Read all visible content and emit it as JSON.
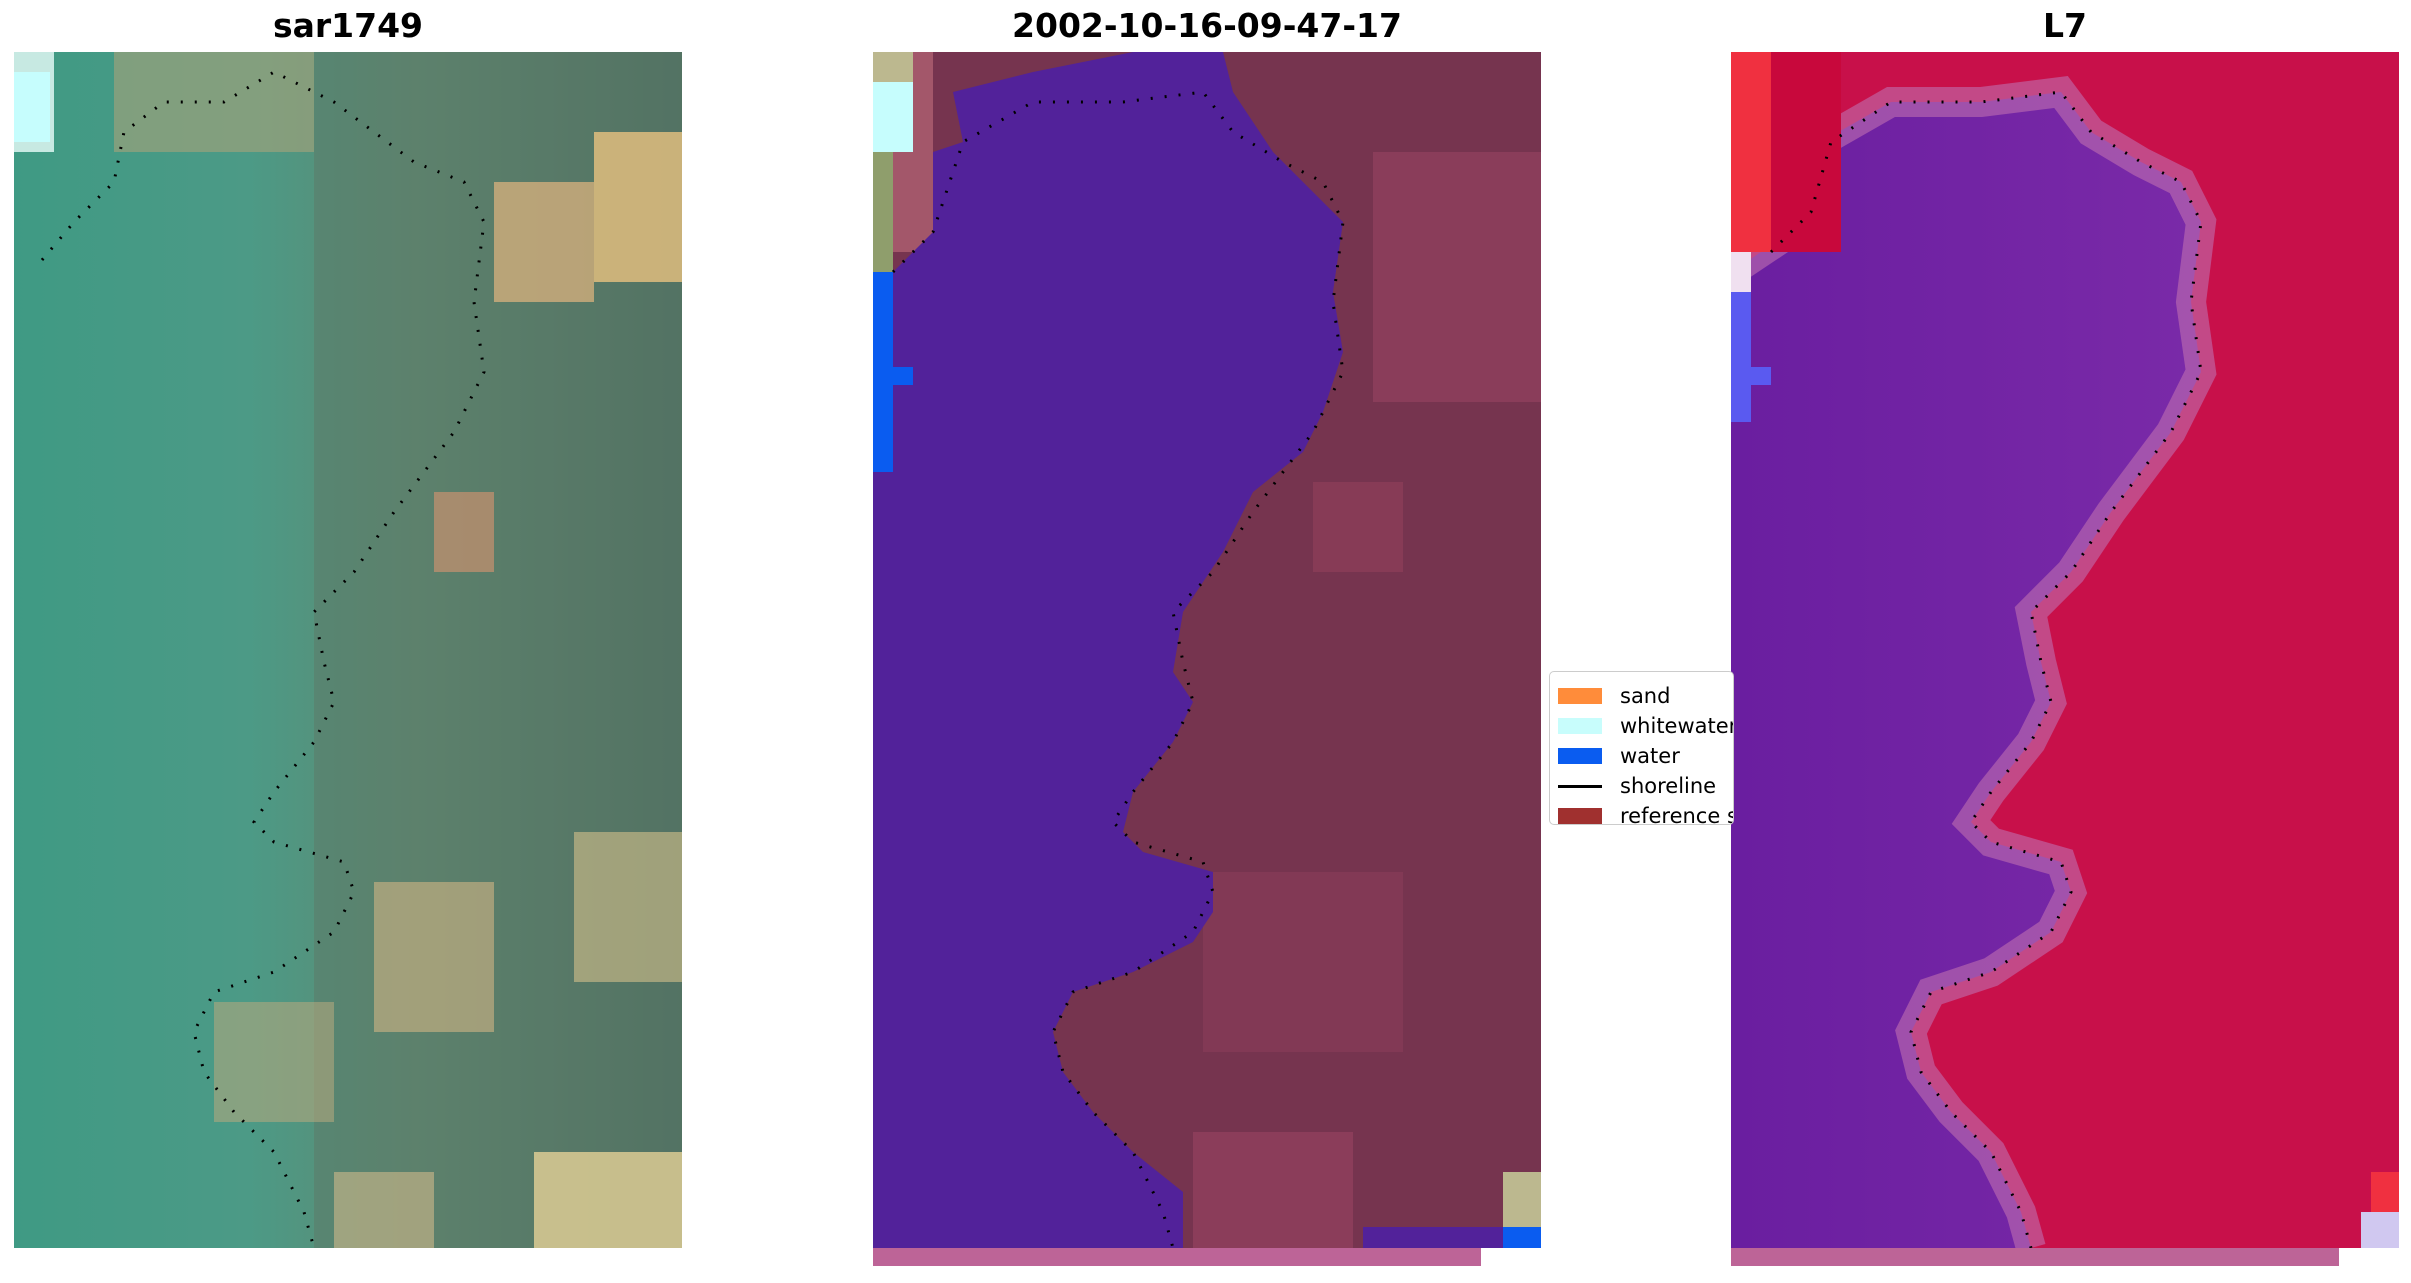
{
  "panels": {
    "left": {
      "title": "sar1749"
    },
    "middle": {
      "title": "2002-10-16-09-47-17"
    },
    "right": {
      "title": "L7"
    }
  },
  "legend": {
    "items": [
      {
        "label": "sand",
        "kind": "patch",
        "color": "#ff8c3a"
      },
      {
        "label": "whitewater",
        "kind": "patch",
        "color": "#c8fdfc"
      },
      {
        "label": "water",
        "kind": "patch",
        "color": "#0a5cf0"
      },
      {
        "label": "shoreline",
        "kind": "line",
        "color": "#000000"
      },
      {
        "label": "reference shoreline",
        "kind": "patch",
        "color": "#a0302f"
      }
    ]
  },
  "colors": {
    "water_class": "#52229a",
    "land_rgb": "#76344f",
    "strip": "#bd6497"
  }
}
